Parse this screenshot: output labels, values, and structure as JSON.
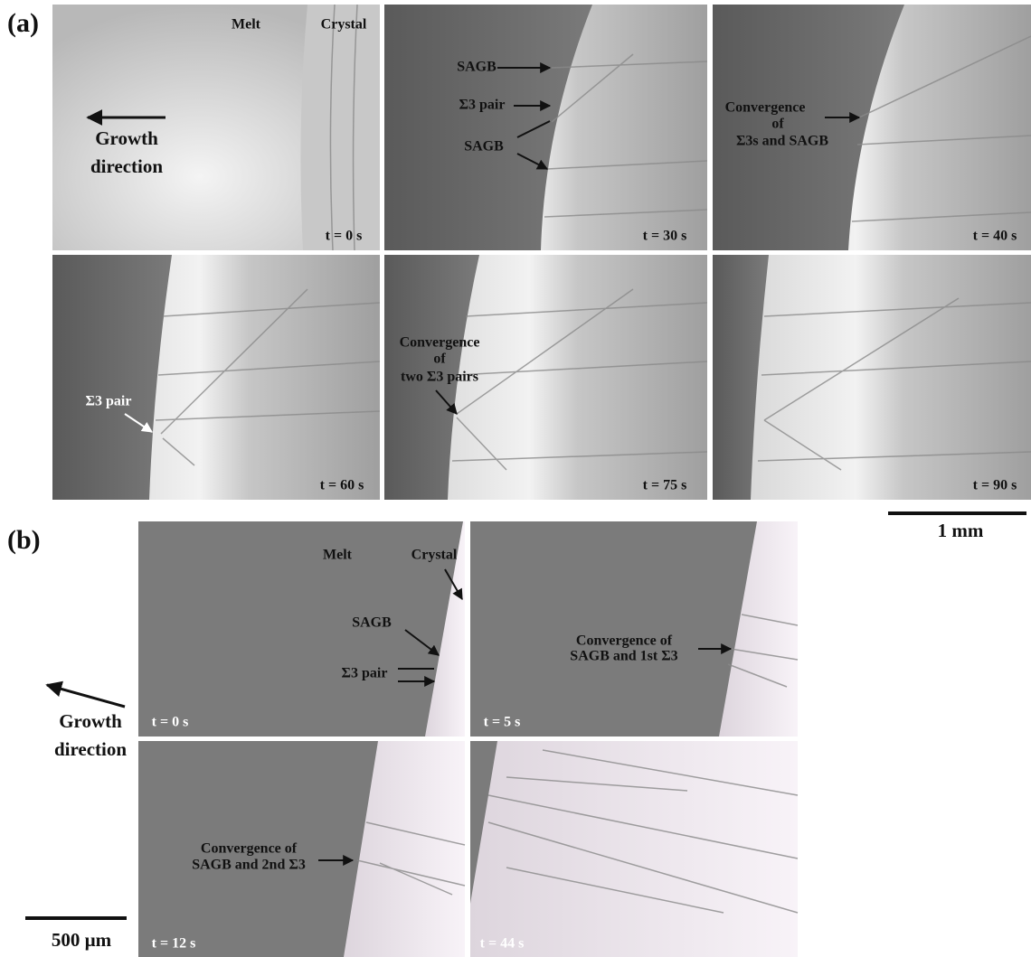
{
  "panel_a": {
    "label": "(a)",
    "growth_direction": [
      "Growth",
      "direction"
    ],
    "scale_bar": "1 mm",
    "frames": [
      {
        "time": "t = 0 s",
        "annotations": [
          "Melt",
          "Crystal"
        ]
      },
      {
        "time": "t = 30 s",
        "annotations": [
          "SAGB",
          "Σ3 pair",
          "SAGB"
        ]
      },
      {
        "time": "t = 40 s",
        "annotations": [
          "Convergence",
          "of",
          "Σ3s and SAGB"
        ]
      },
      {
        "time": "t = 60 s",
        "annotations": [
          "Σ3 pair"
        ]
      },
      {
        "time": "t = 75 s",
        "annotations": [
          "Convergence",
          "of",
          "two Σ3 pairs"
        ]
      },
      {
        "time": "t = 90 s",
        "annotations": []
      }
    ]
  },
  "panel_b": {
    "label": "(b)",
    "growth_direction": [
      "Growth",
      "direction"
    ],
    "scale_bar": "500 µm",
    "frames": [
      {
        "time": "t = 0 s",
        "annotations": [
          "Melt",
          "Crystal",
          "SAGB",
          "Σ3 pair"
        ]
      },
      {
        "time": "t = 5 s",
        "annotations": [
          "Convergence of",
          "SAGB and 1st Σ3"
        ]
      },
      {
        "time": "t = 12 s",
        "annotations": [
          "Convergence of",
          "SAGB and 2nd Σ3"
        ]
      },
      {
        "time": "t = 44 s",
        "annotations": []
      }
    ]
  }
}
